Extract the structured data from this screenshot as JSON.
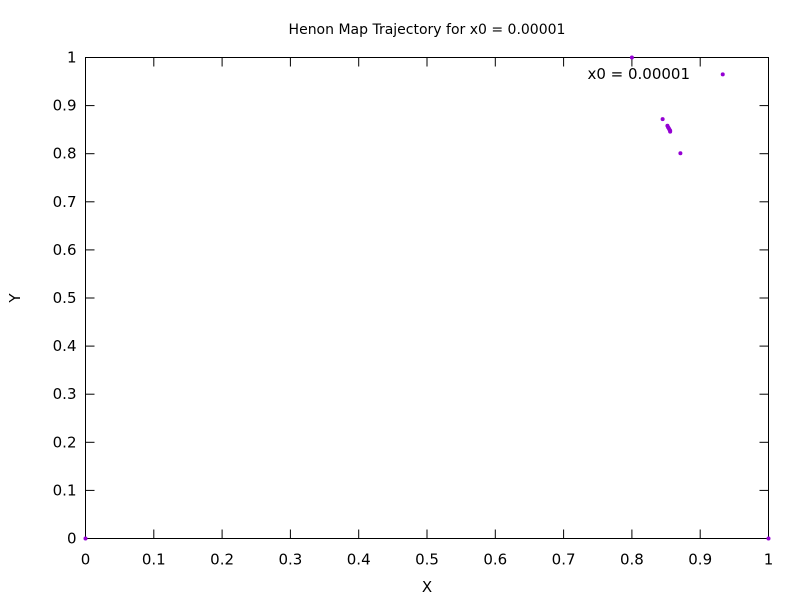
{
  "chart_data": {
    "type": "scatter",
    "title": "Henon Map Trajectory for x0 = 0.00001",
    "xlabel": "X",
    "ylabel": "Y",
    "xlim": [
      0,
      1
    ],
    "ylim": [
      0,
      1
    ],
    "xticks": [
      "0",
      "0.1",
      "0.2",
      "0.3",
      "0.4",
      "0.5",
      "0.6",
      "0.7",
      "0.8",
      "0.9",
      "1"
    ],
    "yticks": [
      "0",
      "0.1",
      "0.2",
      "0.3",
      "0.4",
      "0.5",
      "0.6",
      "0.7",
      "0.8",
      "0.9",
      "1"
    ],
    "grid": false,
    "legend_position": "top-right",
    "series": [
      {
        "name": "x0 = 0.00001",
        "color": "#9400d3",
        "points": [
          {
            "x": 0.0,
            "y": 0.0
          },
          {
            "x": 1.0,
            "y": 0.0
          },
          {
            "x": 0.8,
            "y": 1.0
          },
          {
            "x": 0.933,
            "y": 0.965
          },
          {
            "x": 0.845,
            "y": 0.872
          },
          {
            "x": 0.871,
            "y": 0.801
          },
          {
            "x": 0.852,
            "y": 0.858
          },
          {
            "x": 0.853,
            "y": 0.855
          },
          {
            "x": 0.854,
            "y": 0.853
          },
          {
            "x": 0.855,
            "y": 0.85
          },
          {
            "x": 0.856,
            "y": 0.848
          },
          {
            "x": 0.856,
            "y": 0.846
          }
        ]
      }
    ]
  }
}
